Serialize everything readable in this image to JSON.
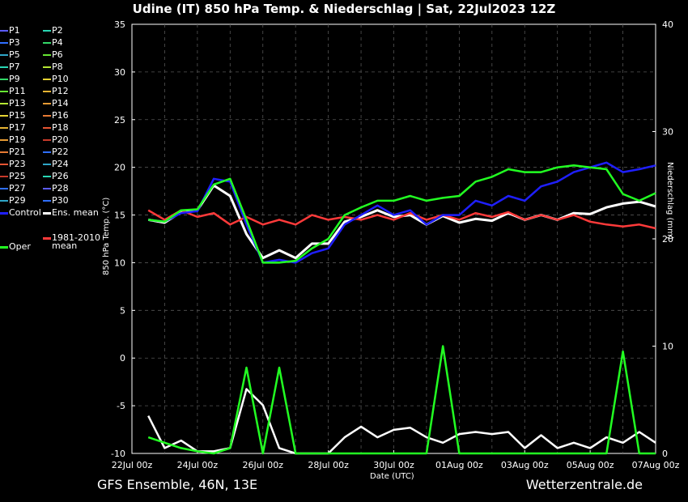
{
  "title": "Udine  (IT)  850 hPa Temp. & Niederschlag | Sat, 22Jul2023 12Z",
  "footer_left": "GFS Ensemble, 46N, 13E",
  "footer_right": "Wetterzentrale.de",
  "chart_data": {
    "type": "line",
    "xlabel": "Date (UTC)",
    "ylabel_left": "850 hPa Temp. (°C)",
    "ylabel_right": "Niederschlag (mm)",
    "ylim_left": [
      -10,
      35
    ],
    "ylim_right": [
      0,
      40
    ],
    "xlim_days": [
      0,
      16
    ],
    "yticks_left": [
      "-10",
      "-5",
      "0",
      "5",
      "10",
      "15",
      "20",
      "25",
      "30",
      "35"
    ],
    "yticks_right": [
      "0",
      "10",
      "20",
      "30",
      "40"
    ],
    "x_ticks": [
      "22Jul 00z",
      "24Jul 00z",
      "26Jul 00z",
      "28Jul 00z",
      "30Jul 00z",
      "01Aug 00z",
      "03Aug 00z",
      "05Aug 00z",
      "07Aug 00z"
    ],
    "grid": true,
    "legend": {
      "col1": [
        "P1",
        "P3",
        "P5",
        "P7",
        "P9",
        "P11",
        "P13",
        "P15",
        "P17",
        "P19",
        "P21",
        "P23",
        "P25",
        "P27",
        "P29",
        "Control"
      ],
      "col2": [
        "P2",
        "P4",
        "P6",
        "P8",
        "P10",
        "P12",
        "P14",
        "P16",
        "P18",
        "P20",
        "P22",
        "P24",
        "P26",
        "P28",
        "P30",
        "Ens. mean"
      ],
      "oper": "Oper",
      "clim_line1": "1981-2010",
      "clim_line2": "mean"
    },
    "series": [
      {
        "name": "Ens. mean",
        "color": "#ffffff",
        "x": [
          0.5,
          1,
          1.5,
          2,
          2.5,
          3,
          3.5,
          4,
          4.5,
          5,
          5.5,
          6,
          6.5,
          7,
          7.5,
          8,
          8.5,
          9,
          9.5,
          10,
          10.5,
          11,
          11.5,
          12,
          12.5,
          13,
          13.5,
          14,
          14.5,
          15,
          15.5,
          16
        ],
        "y": [
          14.5,
          14.2,
          15.3,
          15.5,
          18.1,
          17,
          13,
          10.5,
          11.3,
          10.5,
          12,
          12,
          14.3,
          14.8,
          15.5,
          14.8,
          15,
          14,
          14.9,
          14.2,
          14.6,
          14.4,
          15.2,
          14.5,
          15,
          14.5,
          15.2,
          15.1,
          15.8,
          16.2,
          16.4,
          15.9
        ]
      },
      {
        "name": "1981-2010 mean",
        "color": "#ff3a3a",
        "x": [
          0.5,
          1,
          1.5,
          2,
          2.5,
          3,
          3.5,
          4,
          4.5,
          5,
          5.5,
          6,
          6.5,
          7,
          7.5,
          8,
          8.5,
          9,
          9.5,
          10,
          10.5,
          11,
          11.5,
          12,
          12.5,
          13,
          13.5,
          14,
          14.5,
          15,
          15.5,
          16
        ],
        "y": [
          15.5,
          14.5,
          15.5,
          14.8,
          15.2,
          14,
          14.8,
          14,
          14.5,
          14,
          15,
          14.5,
          14.8,
          14.5,
          15,
          14.5,
          15.2,
          14.5,
          15,
          14.5,
          15.2,
          14.8,
          15.3,
          14.5,
          15,
          14.5,
          15,
          14.3,
          14,
          13.8,
          14,
          13.6
        ]
      },
      {
        "name": "Control",
        "color": "#1f1fff",
        "x": [
          0.5,
          1,
          1.5,
          2,
          2.5,
          3,
          3.5,
          4,
          4.5,
          5,
          5.5,
          6,
          6.5,
          7,
          7.5,
          8,
          8.5,
          9,
          9.5,
          10,
          10.5,
          11,
          11.5,
          12,
          12.5,
          13,
          13.5,
          14,
          14.5,
          15,
          15.5,
          16
        ],
        "y": [
          14.5,
          14.3,
          15.2,
          15.4,
          18.8,
          18.5,
          14,
          10,
          10.3,
          10,
          11,
          11.5,
          14,
          15,
          16,
          15,
          15.5,
          14,
          15,
          15,
          16.5,
          16,
          17,
          16.5,
          18,
          18.5,
          19.5,
          20,
          20.5,
          19.5,
          19.8,
          20.2
        ]
      },
      {
        "name": "Oper",
        "color": "#22ff22",
        "x": [
          0.5,
          1,
          1.5,
          2,
          2.5,
          3,
          3.5,
          4,
          4.5,
          5,
          5.5,
          6,
          6.5,
          7,
          7.5,
          8,
          8.5,
          9,
          9.5,
          10,
          10.5,
          11,
          11.5,
          12,
          12.5,
          13,
          13.5,
          14,
          14.5,
          15,
          15.5,
          16
        ],
        "y": [
          14.5,
          14.3,
          15.5,
          15.6,
          18.2,
          18.8,
          14.5,
          10,
          10,
          10.2,
          11.5,
          12.5,
          15,
          15.8,
          16.5,
          16.5,
          17,
          16.5,
          16.8,
          17,
          18.5,
          19,
          19.8,
          19.5,
          19.5,
          20,
          20.2,
          20,
          19.8,
          17.2,
          16.5,
          17.3
        ]
      }
    ],
    "precip_series": [
      {
        "name": "Ens. mean",
        "color": "#ffffff",
        "x": [
          0.5,
          1,
          1.5,
          2,
          2.5,
          3,
          3.5,
          4,
          4.5,
          5,
          5.5,
          6,
          6.5,
          7,
          7.5,
          8,
          8.5,
          9,
          9.5,
          10,
          10.5,
          11,
          11.5,
          12,
          12.5,
          13,
          13.5,
          14,
          14.5,
          15,
          15.5,
          16
        ],
        "y": [
          3.5,
          0.5,
          1.2,
          0.2,
          0.2,
          0.5,
          6,
          4.5,
          0.5,
          0,
          0,
          0,
          1.5,
          2.5,
          1.5,
          2.2,
          2.4,
          1.5,
          1.0,
          1.8,
          2.0,
          1.8,
          2.0,
          0.5,
          1.7,
          0.5,
          1.0,
          0.5,
          1.5,
          1.0,
          2.0,
          1.0
        ]
      },
      {
        "name": "Oper",
        "color": "#22ff22",
        "x": [
          0.5,
          1,
          1.5,
          2,
          2.5,
          3,
          3.5,
          4,
          4.5,
          5,
          5.5,
          6,
          6.5,
          7,
          7.5,
          8,
          8.5,
          9,
          9.5,
          10,
          10.5,
          11,
          11.5,
          12,
          12.5,
          13,
          13.5,
          14,
          14.5,
          15,
          15.5,
          16
        ],
        "y": [
          1.5,
          1.0,
          0.5,
          0.2,
          0,
          0.5,
          8,
          0,
          8,
          0,
          0,
          0,
          0,
          0,
          0,
          0,
          0,
          0,
          10,
          0,
          0,
          0,
          0,
          0,
          0,
          0,
          0,
          0,
          0,
          9.5,
          0,
          0
        ]
      }
    ]
  }
}
